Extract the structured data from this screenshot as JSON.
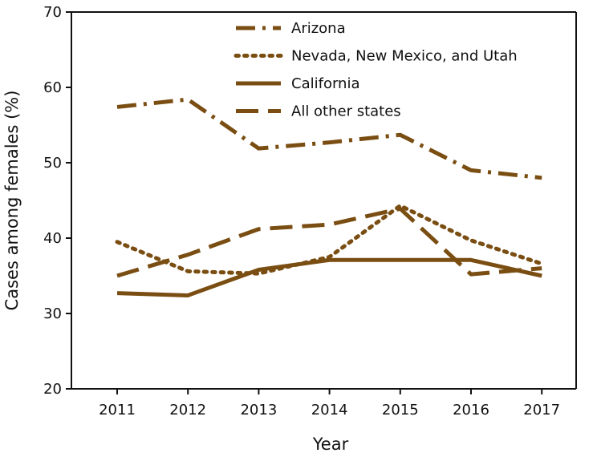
{
  "chart_data": {
    "type": "line",
    "xlabel": "Year",
    "ylabel": "Cases among females (%)",
    "categories": [
      "2011",
      "2012",
      "2013",
      "2014",
      "2015",
      "2016",
      "2017"
    ],
    "ylim": [
      20,
      70
    ],
    "yticks": [
      20,
      30,
      40,
      50,
      60,
      70
    ],
    "grid": false,
    "legend_position": "top-center",
    "line_color": "#7a4e12",
    "series": [
      {
        "name": "Arizona",
        "dash": "dash-dot",
        "values": [
          57.4,
          58.4,
          51.9,
          52.7,
          53.7,
          49.0,
          48.0
        ]
      },
      {
        "name": "Nevada, New Mexico, and Utah",
        "dash": "dotted",
        "values": [
          39.5,
          35.6,
          35.3,
          37.5,
          44.3,
          39.7,
          36.6
        ]
      },
      {
        "name": "California",
        "dash": "solid",
        "values": [
          32.7,
          32.4,
          35.8,
          37.1,
          37.1,
          37.1,
          35.0
        ]
      },
      {
        "name": "All other states",
        "dash": "dashed",
        "values": [
          35.0,
          37.8,
          41.2,
          41.8,
          43.9,
          35.2,
          36.0
        ]
      }
    ]
  }
}
